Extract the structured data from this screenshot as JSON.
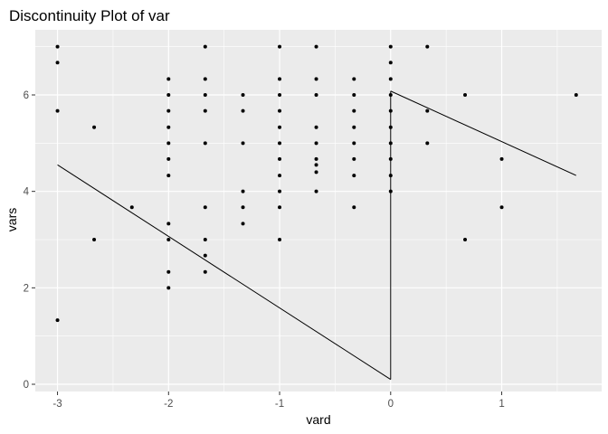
{
  "chart_data": {
    "type": "scatter",
    "title": "Discontinuity Plot of var",
    "xlabel": "vard",
    "ylabel": "vars",
    "xlim": [
      -3.2,
      1.9
    ],
    "ylim": [
      -0.15,
      7.35
    ],
    "x_ticks": [
      {
        "value": -3,
        "label": "-3"
      },
      {
        "value": -2,
        "label": "-2"
      },
      {
        "value": -1,
        "label": "-1"
      },
      {
        "value": 0,
        "label": "0"
      },
      {
        "value": 1,
        "label": "1"
      }
    ],
    "y_ticks": [
      {
        "value": 0,
        "label": "0"
      },
      {
        "value": 2,
        "label": "2"
      },
      {
        "value": 4,
        "label": "4"
      },
      {
        "value": 6,
        "label": "6"
      }
    ],
    "grid": true,
    "colors": {
      "panel": "#ebebeb",
      "grid": "#ffffff",
      "points": "#000000",
      "lines": "#000000"
    },
    "points": [
      {
        "x": -3,
        "y": 7.0
      },
      {
        "x": -3,
        "y": 6.67
      },
      {
        "x": -3,
        "y": 5.67
      },
      {
        "x": -3,
        "y": 1.33
      },
      {
        "x": -2.67,
        "y": 5.33
      },
      {
        "x": -2.67,
        "y": 3.0
      },
      {
        "x": -2.33,
        "y": 3.67
      },
      {
        "x": -2,
        "y": 6.33
      },
      {
        "x": -2,
        "y": 6.0
      },
      {
        "x": -2,
        "y": 5.67
      },
      {
        "x": -2,
        "y": 5.33
      },
      {
        "x": -2,
        "y": 5.0
      },
      {
        "x": -2,
        "y": 4.67
      },
      {
        "x": -2,
        "y": 4.33
      },
      {
        "x": -2,
        "y": 3.33
      },
      {
        "x": -2,
        "y": 3.0
      },
      {
        "x": -2,
        "y": 2.33
      },
      {
        "x": -2,
        "y": 2.0
      },
      {
        "x": -1.67,
        "y": 7.0
      },
      {
        "x": -1.67,
        "y": 6.33
      },
      {
        "x": -1.67,
        "y": 6.0
      },
      {
        "x": -1.67,
        "y": 5.67
      },
      {
        "x": -1.67,
        "y": 5.0
      },
      {
        "x": -1.67,
        "y": 3.67
      },
      {
        "x": -1.67,
        "y": 3.0
      },
      {
        "x": -1.67,
        "y": 2.67
      },
      {
        "x": -1.67,
        "y": 2.33
      },
      {
        "x": -1.33,
        "y": 6.0
      },
      {
        "x": -1.33,
        "y": 5.67
      },
      {
        "x": -1.33,
        "y": 5.0
      },
      {
        "x": -1.33,
        "y": 4.0
      },
      {
        "x": -1.33,
        "y": 3.67
      },
      {
        "x": -1.33,
        "y": 3.33
      },
      {
        "x": -1,
        "y": 7.0
      },
      {
        "x": -1,
        "y": 6.33
      },
      {
        "x": -1,
        "y": 6.0
      },
      {
        "x": -1,
        "y": 5.67
      },
      {
        "x": -1,
        "y": 5.33
      },
      {
        "x": -1,
        "y": 5.0
      },
      {
        "x": -1,
        "y": 4.67
      },
      {
        "x": -1,
        "y": 4.33
      },
      {
        "x": -1,
        "y": 4.0
      },
      {
        "x": -1,
        "y": 3.67
      },
      {
        "x": -1,
        "y": 3.0
      },
      {
        "x": -0.67,
        "y": 7.0
      },
      {
        "x": -0.67,
        "y": 6.33
      },
      {
        "x": -0.67,
        "y": 6.0
      },
      {
        "x": -0.67,
        "y": 5.33
      },
      {
        "x": -0.67,
        "y": 5.0
      },
      {
        "x": -0.67,
        "y": 4.67
      },
      {
        "x": -0.67,
        "y": 4.55
      },
      {
        "x": -0.67,
        "y": 4.4
      },
      {
        "x": -0.67,
        "y": 4.0
      },
      {
        "x": -0.33,
        "y": 6.33
      },
      {
        "x": -0.33,
        "y": 6.0
      },
      {
        "x": -0.33,
        "y": 5.67
      },
      {
        "x": -0.33,
        "y": 5.33
      },
      {
        "x": -0.33,
        "y": 5.0
      },
      {
        "x": -0.33,
        "y": 4.67
      },
      {
        "x": -0.33,
        "y": 4.33
      },
      {
        "x": -0.33,
        "y": 3.67
      },
      {
        "x": 0,
        "y": 7.0
      },
      {
        "x": 0,
        "y": 6.67
      },
      {
        "x": 0,
        "y": 6.33
      },
      {
        "x": 0,
        "y": 6.0
      },
      {
        "x": 0,
        "y": 5.67
      },
      {
        "x": 0,
        "y": 5.33
      },
      {
        "x": 0,
        "y": 5.0
      },
      {
        "x": 0,
        "y": 4.67
      },
      {
        "x": 0,
        "y": 4.33
      },
      {
        "x": 0,
        "y": 4.0
      },
      {
        "x": 0.33,
        "y": 7.0
      },
      {
        "x": 0.33,
        "y": 5.67
      },
      {
        "x": 0.33,
        "y": 5.0
      },
      {
        "x": 0.67,
        "y": 6.0
      },
      {
        "x": 0.67,
        "y": 3.0
      },
      {
        "x": 1,
        "y": 4.67
      },
      {
        "x": 1,
        "y": 3.67
      },
      {
        "x": 1.67,
        "y": 6.0
      }
    ],
    "fit_lines": [
      {
        "segments": [
          [
            -3,
            4.55
          ],
          [
            0,
            0.1
          ]
        ]
      },
      {
        "segments": [
          [
            0,
            0.1
          ],
          [
            0,
            6.08
          ]
        ]
      },
      {
        "segments": [
          [
            0,
            6.08
          ],
          [
            1.67,
            4.33
          ]
        ]
      }
    ]
  }
}
